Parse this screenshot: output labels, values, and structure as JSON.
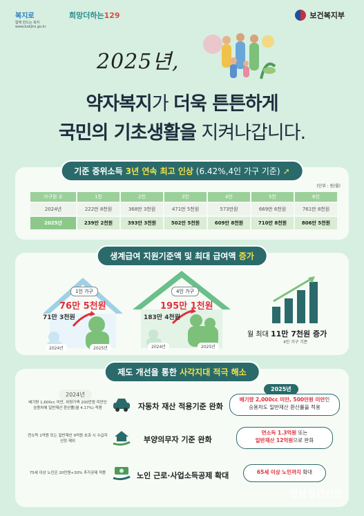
{
  "header": {
    "logo_left_main": "복지로",
    "logo_left_sub1": "함께 만드는 복지",
    "logo_left_sub2": "www.bokjiro.go.kr",
    "logo_mid_text": "희망더하는",
    "logo_mid_num": "129",
    "ministry": "보건복지부"
  },
  "headline": {
    "year": "2025년,",
    "line1_bold1": "약자복지",
    "line1_light1": "가 ",
    "line1_bold2": "더욱 튼튼하게",
    "line2_bold": "국민의 기초생활을",
    "line2_light": " 지켜나갑니다."
  },
  "section1": {
    "title_a": "기준 중위소득 ",
    "title_b": "3년 연속 최고 인상",
    "title_c": " (6.42%,4인 가구 기준)",
    "unit": "(단위 : 원/월)",
    "header_label": "가구원 수",
    "columns": [
      "1인",
      "2인",
      "3인",
      "4인",
      "5인",
      "6인"
    ],
    "row2024_label": "2024년",
    "row2024": [
      "222만 8천원",
      "368만 3천원",
      "471만 5천원",
      "573만원",
      "669만 6천원",
      "761만 8천원"
    ],
    "row2025_label": "2025년",
    "row2025": [
      "239만 2천원",
      "393만 3천원",
      "502만 5천원",
      "609만 8천원",
      "710만 8천원",
      "806만 5천원"
    ]
  },
  "section2": {
    "title_a": "생계급여 지원기준액 및 최대 급여액 ",
    "title_b": "증가",
    "house1": {
      "label": "1인 가구",
      "v2025": "76만 5천원",
      "v2024": "71만 3천원",
      "y2024": "2024년",
      "y2025": "2025년"
    },
    "house2": {
      "label": "4인 가구",
      "v2025": "195만 1천원",
      "v2024": "183만 4천원",
      "y2024": "2024년",
      "y2025": "2025년"
    },
    "increase_a": "월 최대 ",
    "increase_b": "11만 7천원 증가",
    "increase_note": "4인 가구 기준"
  },
  "section3": {
    "title_a": "제도 개선을 통한 ",
    "title_b": "사각지대 적극 해소",
    "tag2024": "2024년",
    "tag2025": "2025년",
    "rows": [
      {
        "left": "배기량 1,600cc 미만, 차량가액 200만원 미만인 승용차에 일반재산 환산률(월 4.17%) 적용",
        "title": "자동차 재산 적용기준 완화",
        "right_red": "배기량 2,000cc 미만, 500만원 미만",
        "right_rest1": "인",
        "right_rest2": "승용차도 일반재산 환산률을 적용"
      },
      {
        "left": "연소득 1억원 또는 일반재산 9억원 초과 시 수급자 선정 제외",
        "title": "부양의무자 기준 완화",
        "right_red": "연소득 1.3억원",
        "right_rest1": " 또는",
        "right_red2": "일반재산 12억원",
        "right_rest2": "으로 완화"
      },
      {
        "left": "75세 이상 노인은 20만원+30% 추가공제 적용",
        "title": "노인 근로·사업소득공제 확대",
        "right_red": "65세 이상 노인까지",
        "right_rest1": " 확대"
      }
    ]
  },
  "footer": {
    "watermark": "경남일간신문"
  },
  "colors": {
    "background": "#d6efe1",
    "accent": "#2a6a6a",
    "highlight": "#f3e04a",
    "red": "#e0303a",
    "green": "#4f9a5a"
  }
}
